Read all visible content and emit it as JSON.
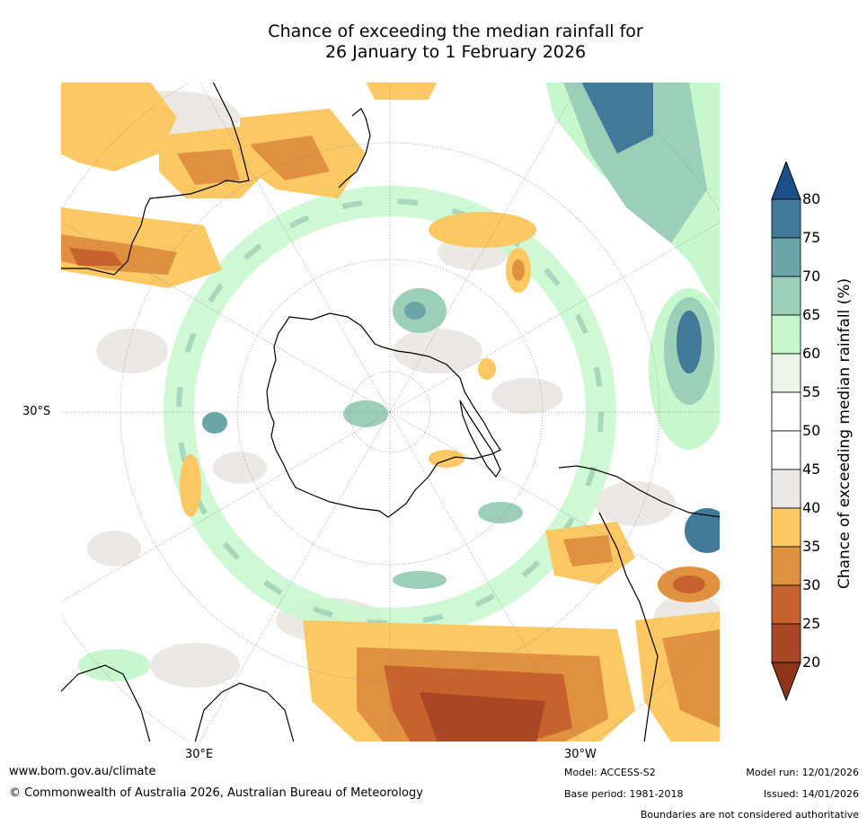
{
  "title": {
    "line1": "Chance of exceeding the median rainfall for",
    "line2": "26 January to 1 February 2026"
  },
  "map_labels": {
    "lat_30s": "30°S",
    "lon_30e": "30°E",
    "lon_30w": "30°W"
  },
  "colorbar": {
    "label": "Chance of exceeding median rainfall (%)",
    "ticks": [
      "80",
      "75",
      "70",
      "65",
      "60",
      "55",
      "50",
      "45",
      "40",
      "35",
      "30",
      "25",
      "20"
    ],
    "colors": {
      "over": "#1a4f8a",
      "75_80": "#417a98",
      "70_75": "#6aa6a8",
      "65_70": "#9ccfb7",
      "60_65": "#c7f7cd",
      "55_60": "#eaf5e8",
      "50_55": "#ffffff",
      "45_50": "#ffffff",
      "40_45": "#ece9e4",
      "35_40": "#fcc863",
      "30_35": "#df913f",
      "25_30": "#c7622e",
      "20_25": "#a84626",
      "under": "#8c3519"
    }
  },
  "footer": {
    "website": "www.bom.gov.au/climate",
    "copyright": "© Commonwealth of Australia 2026, Australian Bureau of Meteorology",
    "model": "Model: ACCESS-S2",
    "base_period": "Base period: 1981-2018",
    "model_run": "Model run: 12/01/2026",
    "issued": "Issued: 14/01/2026",
    "disclaimer": "Boundaries are not considered authoritative"
  }
}
